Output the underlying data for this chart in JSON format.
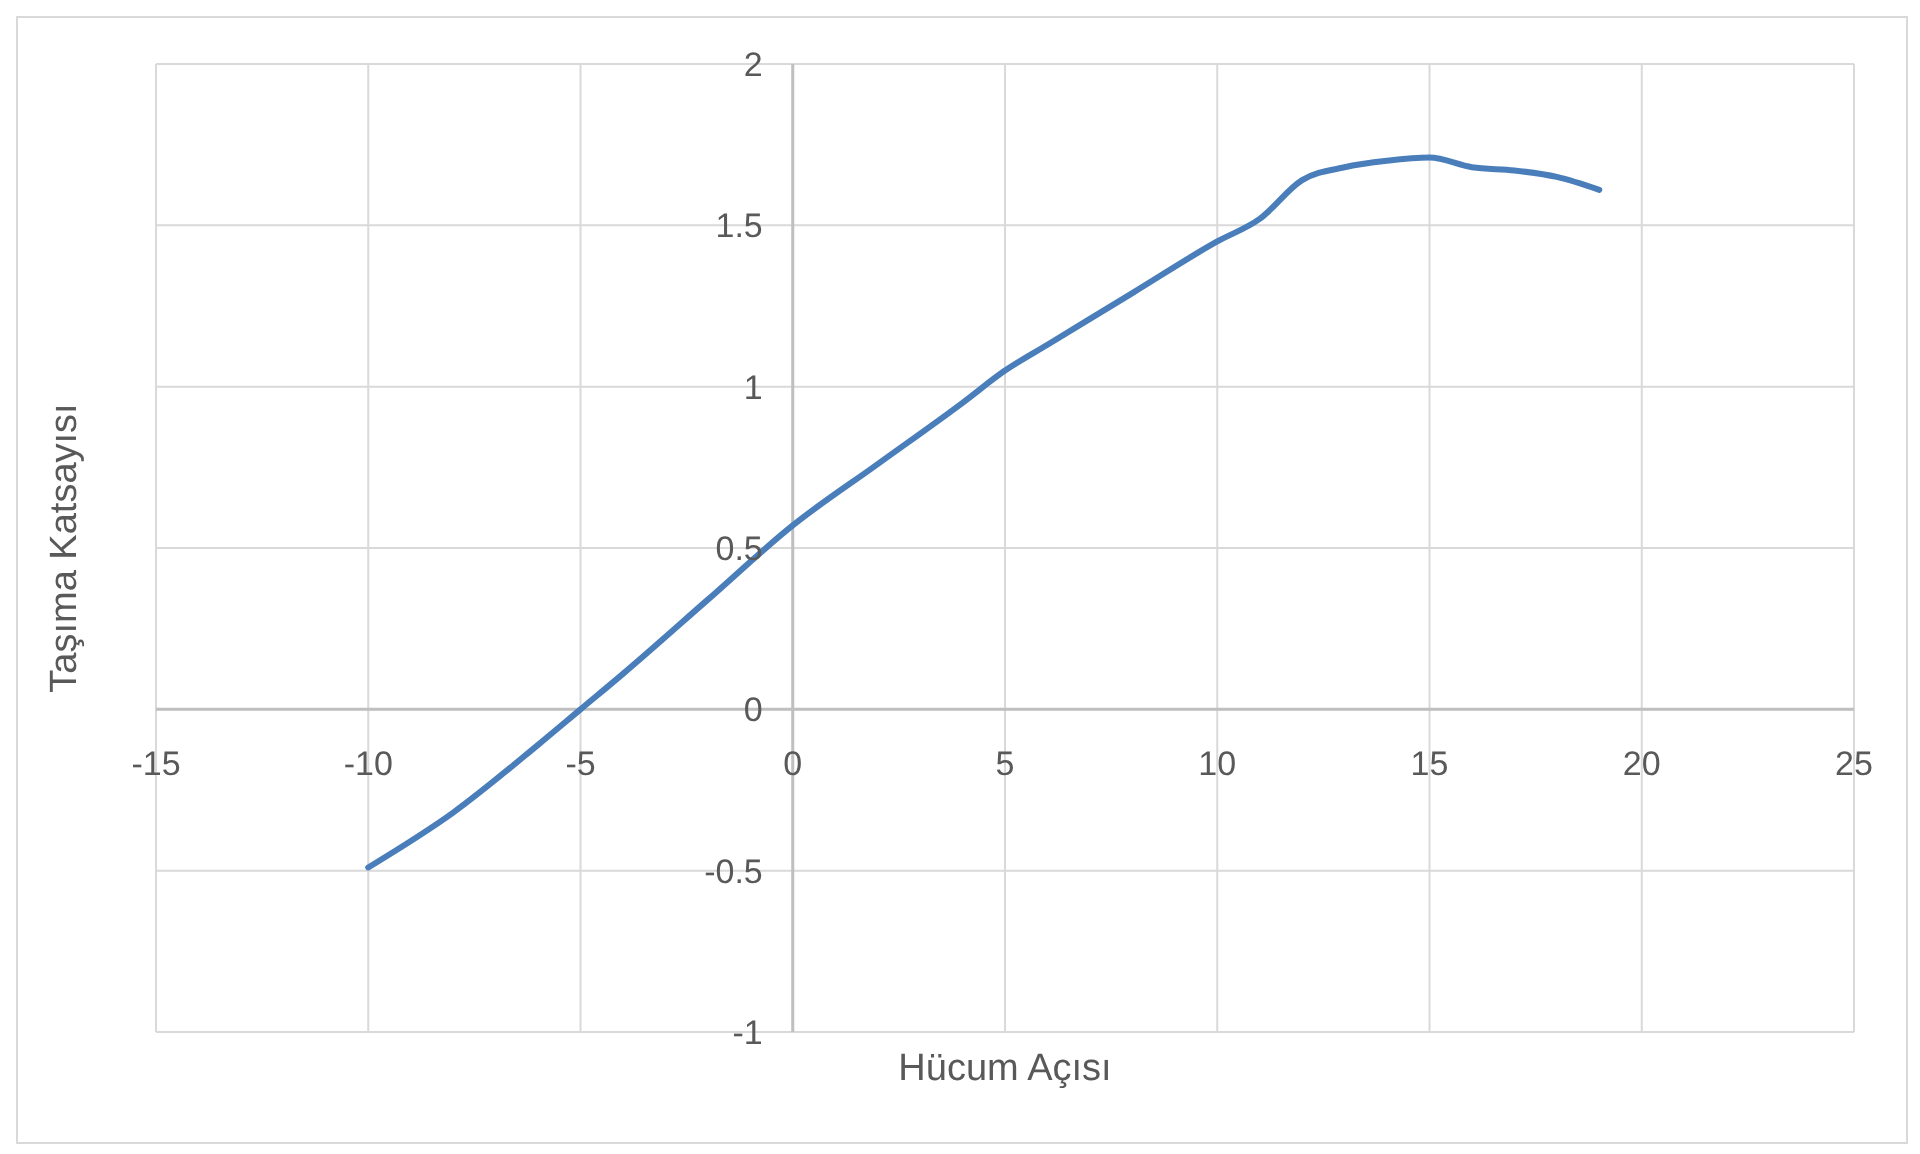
{
  "chart_data": {
    "type": "line",
    "xlabel": "Hücum Açısı",
    "ylabel": "Taşıma Katsayısı",
    "x": [
      -10,
      -8,
      -6,
      -5,
      -4,
      -2,
      0,
      2,
      4,
      5,
      6,
      8,
      10,
      11,
      12,
      13,
      14,
      15,
      16,
      17,
      18,
      19
    ],
    "series": [
      {
        "color": "#4a7ebb",
        "values": [
          -0.49,
          -0.32,
          -0.11,
          0.0,
          0.11,
          0.34,
          0.57,
          0.76,
          0.95,
          1.05,
          1.13,
          1.29,
          1.45,
          1.52,
          1.64,
          1.68,
          1.7,
          1.71,
          1.68,
          1.67,
          1.65,
          1.61
        ]
      }
    ],
    "xlim": [
      -15,
      25
    ],
    "xticks": [
      -15,
      -10,
      -5,
      0,
      5,
      10,
      15,
      20,
      25
    ],
    "ylim": [
      -1,
      2
    ],
    "yticks": [
      -1,
      -0.5,
      0,
      0.5,
      1,
      1.5,
      2
    ],
    "grid": true
  }
}
